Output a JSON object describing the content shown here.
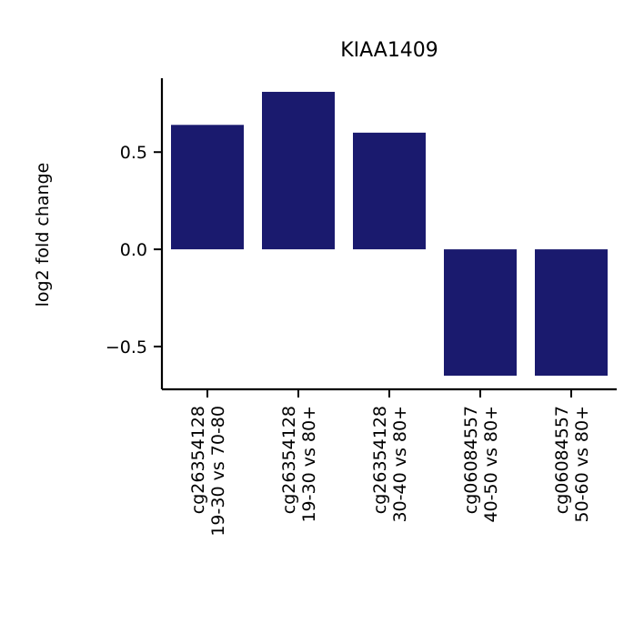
{
  "chart_data": {
    "type": "bar",
    "title": "KIAA1409",
    "xlabel": "",
    "ylabel": "log2 fold change",
    "categories": [
      [
        "cg26354128",
        "19-30 vs 70-80"
      ],
      [
        "cg26354128",
        "19-30 vs 80+"
      ],
      [
        "cg26354128",
        "30-40 vs 80+"
      ],
      [
        "cg06084557",
        "40-50 vs 80+"
      ],
      [
        "cg06084557",
        "50-60 vs 80+"
      ]
    ],
    "values": [
      0.64,
      0.81,
      0.6,
      -0.65,
      -0.65
    ],
    "ylim": [
      -0.72,
      0.88
    ],
    "yticks": [
      -0.5,
      0.0,
      0.5
    ],
    "ytick_labels": [
      "−0.5",
      "0.0",
      "0.5"
    ],
    "bar_color": "#1a1a6e",
    "grid": false,
    "legend": "none"
  }
}
